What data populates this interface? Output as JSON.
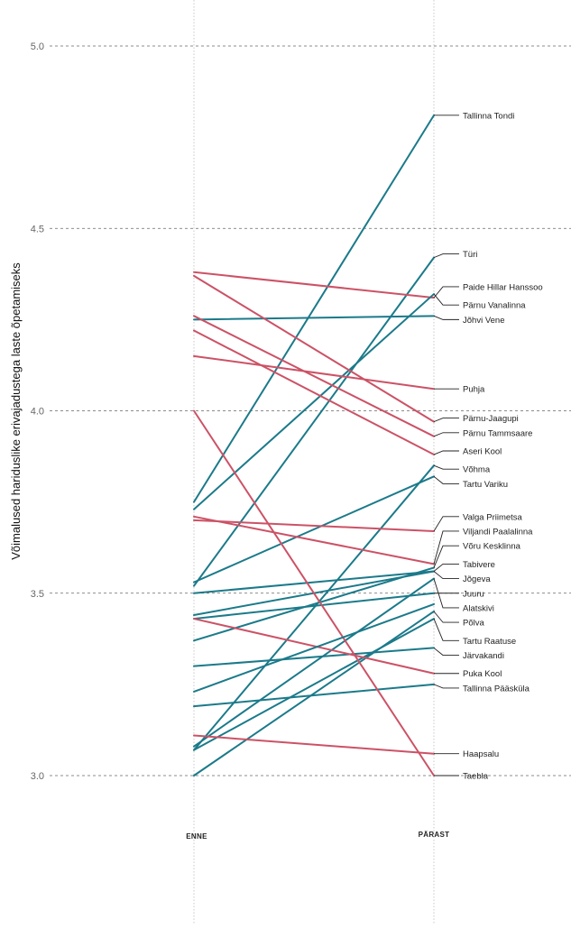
{
  "chart_data": {
    "type": "line",
    "title": "",
    "xlabel": "",
    "ylabel": "Võimalused hariduslike erivajadustega laste õpetamiseks",
    "ylim": [
      3.0,
      5.0
    ],
    "yticks": [
      "3.0",
      "3.5",
      "4.0",
      "4.5",
      "5.0"
    ],
    "grid": "horizontal dashed",
    "x": [
      "ENNE",
      "PÄRAST"
    ],
    "colors": {
      "increase": "#1b7a8a",
      "decrease": "#cc5266"
    },
    "series": [
      {
        "name": "Tallinna Tondi",
        "values": [
          3.75,
          4.81
        ]
      },
      {
        "name": "Türi",
        "values": [
          3.52,
          4.42
        ]
      },
      {
        "name": "Paide Hillar Hanssoo",
        "values": [
          4.38,
          4.31
        ]
      },
      {
        "name": "Pärnu Vanalinna",
        "values": [
          3.73,
          4.32
        ]
      },
      {
        "name": "Jõhvi Vene",
        "values": [
          4.25,
          4.26
        ]
      },
      {
        "name": "Puhja",
        "values": [
          4.15,
          4.06
        ]
      },
      {
        "name": "Pärnu-Jaagupi",
        "values": [
          4.37,
          3.97
        ]
      },
      {
        "name": "Pärnu Tammsaare",
        "values": [
          4.26,
          3.93
        ]
      },
      {
        "name": "Aseri Kool",
        "values": [
          4.22,
          3.88
        ]
      },
      {
        "name": "Võhma",
        "values": [
          3.07,
          3.85
        ]
      },
      {
        "name": "Tartu Variku",
        "values": [
          3.53,
          3.82
        ]
      },
      {
        "name": "Valga Priimetsa",
        "values": [
          3.7,
          3.67
        ]
      },
      {
        "name": "Viljandi Paalalinna",
        "values": [
          3.71,
          3.58
        ]
      },
      {
        "name": "Võru Kesklinna",
        "values": [
          3.37,
          3.57
        ]
      },
      {
        "name": "Tabivere",
        "values": [
          3.5,
          3.56
        ]
      },
      {
        "name": "Jõgeva",
        "values": [
          3.44,
          3.56
        ]
      },
      {
        "name": "Juuru",
        "values": [
          3.43,
          3.5
        ]
      },
      {
        "name": "Alatskivi",
        "values": [
          3.08,
          3.54
        ]
      },
      {
        "name": "Põlva",
        "values": [
          3.0,
          3.45
        ]
      },
      {
        "name": "Tartu Raatuse",
        "values": [
          3.07,
          3.43
        ]
      },
      {
        "name": "Järvakandi",
        "values": [
          3.3,
          3.35
        ]
      },
      {
        "name": "Puka Kool",
        "values": [
          3.43,
          3.28
        ]
      },
      {
        "name": "Tallinna Pääsküla",
        "values": [
          3.19,
          3.25
        ]
      },
      {
        "name": "Haapsalu",
        "values": [
          3.11,
          3.06
        ]
      },
      {
        "name": "Taebla",
        "values": [
          4.0,
          3.0
        ]
      },
      {
        "name": "",
        "values": [
          3.23,
          3.47
        ]
      }
    ],
    "labels": [
      {
        "text": "Tallinna Tondi",
        "for": 4.81,
        "at": 4.81
      },
      {
        "text": "Türi",
        "for": 4.42,
        "at": 4.43
      },
      {
        "text": "Paide Hillar Hanssoo",
        "for": 4.31,
        "at": 4.34
      },
      {
        "text": "Pärnu Vanalinna",
        "for": 4.32,
        "at": 4.29
      },
      {
        "text": "Jõhvi Vene",
        "for": 4.26,
        "at": 4.25
      },
      {
        "text": "Puhja",
        "for": 4.06,
        "at": 4.06
      },
      {
        "text": "Pärnu-Jaagupi",
        "for": 3.97,
        "at": 3.98
      },
      {
        "text": "Pärnu Tammsaare",
        "for": 3.93,
        "at": 3.94
      },
      {
        "text": "Aseri Kool",
        "for": 3.88,
        "at": 3.89
      },
      {
        "text": "Võhma",
        "for": 3.85,
        "at": 3.84
      },
      {
        "text": "Tartu Variku",
        "for": 3.82,
        "at": 3.8
      },
      {
        "text": "Valga Priimetsa",
        "for": 3.67,
        "at": 3.71
      },
      {
        "text": "Viljandi Paalalinna",
        "for": 3.58,
        "at": 3.67
      },
      {
        "text": "Võru Kesklinna",
        "for": 3.57,
        "at": 3.63
      },
      {
        "text": "Tabivere",
        "for": 3.56,
        "at": 3.58
      },
      {
        "text": "Jõgeva",
        "for": 3.56,
        "at": 3.54
      },
      {
        "text": "Juuru",
        "for": 3.5,
        "at": 3.5
      },
      {
        "text": "Alatskivi",
        "for": 3.54,
        "at": 3.46
      },
      {
        "text": "Põlva",
        "for": 3.45,
        "at": 3.42
      },
      {
        "text": "Tartu Raatuse",
        "for": 3.43,
        "at": 3.37
      },
      {
        "text": "Järvakandi",
        "for": 3.35,
        "at": 3.33
      },
      {
        "text": "Puka Kool",
        "for": 3.28,
        "at": 3.28
      },
      {
        "text": "Tallinna Pääsküla",
        "for": 3.25,
        "at": 3.24
      },
      {
        "text": "Haapsalu",
        "for": 3.06,
        "at": 3.06
      },
      {
        "text": "Taebla",
        "for": 3.0,
        "at": 3.0
      }
    ]
  }
}
